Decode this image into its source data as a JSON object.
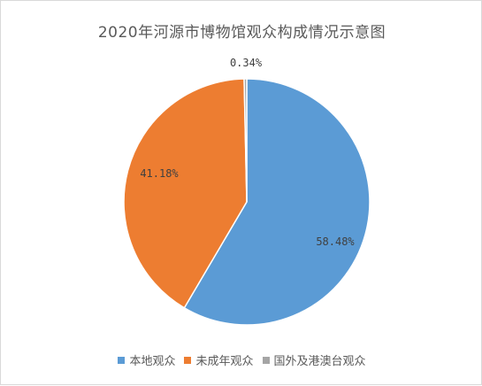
{
  "chart_data": {
    "type": "pie",
    "title": "2020年河源市博物馆观众构成情况示意图",
    "categories": [
      "本地观众",
      "未成年观众",
      "国外及港澳台观众"
    ],
    "values": [
      58.48,
      41.18,
      0.34
    ],
    "data_labels": [
      "58.48%",
      "41.18%",
      "0.34%"
    ],
    "colors": [
      "#5b9bd5",
      "#ed7d31",
      "#a5a5a5"
    ],
    "legend_position": "bottom",
    "start_angle": "top, clockwise"
  }
}
